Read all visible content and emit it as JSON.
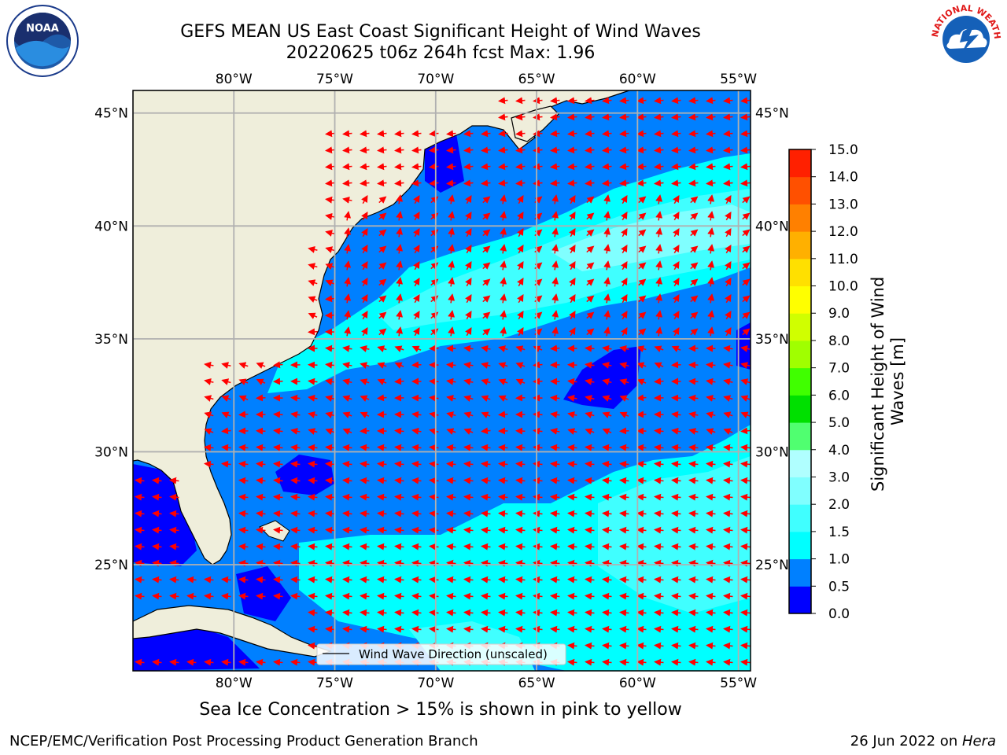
{
  "title_line1": "GEFS MEAN US East Coast Significant Height of Wind Waves",
  "title_line2": "20220625 t06z 264h fcst   Max: 1.96",
  "map": {
    "lon_ticks": [
      {
        "lon": -80,
        "label": "80°W"
      },
      {
        "lon": -75,
        "label": "75°W"
      },
      {
        "lon": -70,
        "label": "70°W"
      },
      {
        "lon": -65,
        "label": "65°W"
      },
      {
        "lon": -60,
        "label": "60°W"
      },
      {
        "lon": -55,
        "label": "55°W"
      }
    ],
    "lat_ticks": [
      {
        "lat": 45,
        "label": "45°N"
      },
      {
        "lat": 40,
        "label": "40°N"
      },
      {
        "lat": 35,
        "label": "35°N"
      },
      {
        "lat": 30,
        "label": "30°N"
      },
      {
        "lat": 25,
        "label": "25°N"
      }
    ],
    "extent": {
      "lon_min": -85,
      "lon_max": -54.4,
      "lat_min": 20.3,
      "lat_max": 46
    },
    "legend_label": "Wind Wave Direction (unscaled)",
    "vector_color": "#ff0000",
    "land_color": "#efeedb",
    "grid_color": "#b0b0b0"
  },
  "colorbar": {
    "label": "Significant Height of Wind Waves [m]",
    "ticks": [
      "0.0",
      "0.5",
      "1.0",
      "1.5",
      "2.0",
      "3.0",
      "4.0",
      "5.0",
      "6.0",
      "7.0",
      "8.0",
      "9.0",
      "10.0",
      "11.0",
      "12.0",
      "13.0",
      "14.0",
      "15.0"
    ],
    "colors": [
      "#0000ff",
      "#0080ff",
      "#00ffff",
      "#40ffff",
      "#80ffff",
      "#b0ffff",
      "#50ff70",
      "#00e000",
      "#40ff00",
      "#a0ff00",
      "#d0ff00",
      "#ffff00",
      "#ffe000",
      "#ffb000",
      "#ff8000",
      "#ff5000",
      "#ff2000"
    ]
  },
  "footer_note": "Sea Ice Concentration > 15% is shown in pink to yellow",
  "credit_left": "NCEP/EMC/Verification Post Processing Product Generation Branch",
  "credit_right_date": "26 Jun 2022 on ",
  "credit_right_machine": "Hera",
  "noaa_logo_text": "NOAA",
  "nws_logo_text": "NATIONAL WEATHER SERVICE"
}
